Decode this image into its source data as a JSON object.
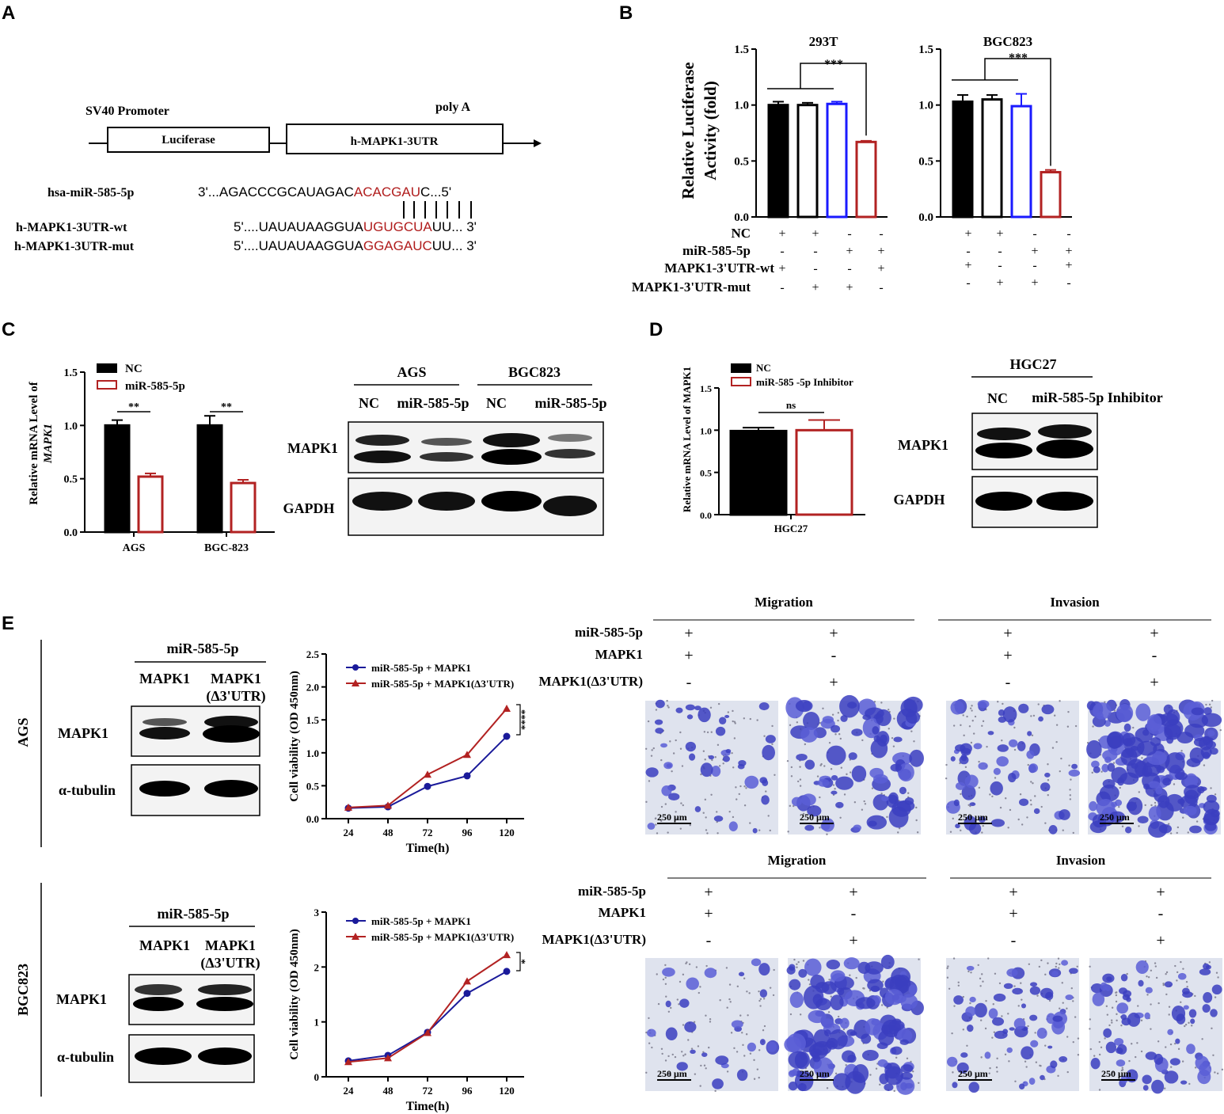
{
  "panels": {
    "A": "A",
    "B": "B",
    "C": "C",
    "D": "D",
    "E": "E"
  },
  "panelA": {
    "promoter": "SV40 Promoter",
    "polya": "poly A",
    "box1": "Luciferase",
    "box2": "h-MAPK1-3UTR",
    "seq1_label": "hsa-miR-585-5p",
    "seq1_a": "3'...AGACCCGCAUAGAC",
    "seq1_b": "ACACGAU",
    "seq1_c": "C...5'",
    "seq2_label": "h-MAPK1-3UTR-wt",
    "seq2_a": "5'....UAUAUAAGGUA",
    "seq2_b": "UGUGCUA",
    "seq2_c": "UU... 3'",
    "seq3_label": "h-MAPK1-3UTR-mut",
    "seq3_a": "5'....UAUAUAAGGUA",
    "seq3_b": "GGAGAUC",
    "seq3_c": "UU... 3'"
  },
  "panelB": {
    "ylabel1": "Relative Luciferase",
    "ylabel2": "Activity (fold)",
    "sig": "***",
    "row_labels": [
      "NC",
      "miR-585-5p",
      "MAPK1-3'UTR-wt",
      "MAPK1-3'UTR-mut"
    ],
    "signs": [
      [
        "+",
        "+",
        "-",
        "-"
      ],
      [
        "-",
        "-",
        "+",
        "+"
      ],
      [
        "+",
        "-",
        "-",
        "+"
      ],
      [
        "-",
        "+",
        "+",
        "-"
      ]
    ]
  },
  "panelC": {
    "ylabel1": "Relative mRNA Level of",
    "ylabel2": "MAPK1",
    "legend": [
      "NC",
      "miR-585-5p"
    ],
    "sig": "**",
    "blot_groups": [
      "AGS",
      "BGC823"
    ],
    "blot_lanes": [
      "NC",
      "miR-585-5p",
      "NC",
      "miR-585-5p"
    ],
    "blot_rows": [
      "MAPK1",
      "GAPDH"
    ]
  },
  "panelD": {
    "ylabel": "Relative mRNA Level of MAPK1",
    "legend": [
      "NC",
      "miR-585 -5p Inhibitor"
    ],
    "sig": "ns",
    "blot_group": "HGC27",
    "blot_lanes": [
      "NC",
      "miR-585-5p Inhibitor"
    ],
    "blot_rows": [
      "MAPK1",
      "GAPDH"
    ]
  },
  "panelE": {
    "rows": [
      "AGS",
      "BGC823"
    ],
    "blot_header": "miR-585-5p",
    "blot_lanes": [
      "MAPK1",
      "MAPK1",
      "(Δ3'UTR)"
    ],
    "blot_rows": [
      "MAPK1",
      "α-tubulin"
    ],
    "curve_ylabel": "Cell viability (OD 450nm)",
    "curve_xlabel": "Time(h)",
    "legend": [
      "miR-585-5p + MAPK1",
      "miR-585-5p + MAPK1(Δ3'UTR)"
    ],
    "sig_top": "****",
    "sig_bottom": "*",
    "assay_titles": [
      "Migration",
      "Invasion"
    ],
    "cond_labels": [
      "miR-585-5p",
      "MAPK1",
      "MAPK1(Δ3'UTR)"
    ],
    "cond_signs": [
      [
        "+",
        "+"
      ],
      [
        "+",
        "-"
      ],
      [
        "-",
        "+"
      ]
    ],
    "scale": "250 μm"
  },
  "chart_data": [
    {
      "type": "bar",
      "title": "293T",
      "ylabel": "Relative Luciferase Activity (fold)",
      "ylim": [
        0,
        1.5
      ],
      "ticks": [
        "0.0",
        "0.5",
        "1.0",
        "1.5"
      ],
      "values": [
        1.0,
        1.0,
        1.01,
        0.67
      ],
      "errors": [
        0.03,
        0.02,
        0.02,
        0.01
      ],
      "colors": [
        "#000000",
        "#000000",
        "#1a1aff",
        "#b22222"
      ],
      "filled": [
        true,
        false,
        false,
        false
      ]
    },
    {
      "type": "bar",
      "title": "BGC823",
      "ylim": [
        0,
        1.5
      ],
      "ticks": [
        "0.0",
        "0.5",
        "1.0",
        "1.5"
      ],
      "values": [
        1.03,
        1.05,
        0.99,
        0.4
      ],
      "errors": [
        0.06,
        0.04,
        0.11,
        0.02
      ],
      "colors": [
        "#000000",
        "#000000",
        "#1a1aff",
        "#b22222"
      ],
      "filled": [
        true,
        false,
        false,
        false
      ]
    },
    {
      "type": "bar",
      "ylabel": "Relative mRNA Level of MAPK1",
      "ylim": [
        0,
        1.5
      ],
      "ticks": [
        "0.0",
        "0.5",
        "1.0",
        "1.5"
      ],
      "categories": [
        "AGS",
        "BGC-823"
      ],
      "series": [
        {
          "name": "NC",
          "values": [
            1.0,
            1.0
          ],
          "errors": [
            0.05,
            0.09
          ]
        },
        {
          "name": "miR-585-5p",
          "values": [
            0.52,
            0.46
          ],
          "errors": [
            0.03,
            0.03
          ]
        }
      ]
    },
    {
      "type": "bar",
      "ylabel": "Relative mRNA Level of MAPK1",
      "ylim": [
        0,
        1.5
      ],
      "ticks": [
        "0.0",
        "0.5",
        "1.0",
        "1.5"
      ],
      "categories": [
        "HGC27"
      ],
      "series": [
        {
          "name": "NC",
          "values": [
            0.99
          ],
          "errors": [
            0.04
          ]
        },
        {
          "name": "miR-585 -5p Inhibitor",
          "values": [
            1.0
          ],
          "errors": [
            0.12
          ]
        }
      ]
    },
    {
      "type": "line",
      "ylabel": "Cell viability (OD 450nm)",
      "xlabel": "Time(h)",
      "ylim": [
        0,
        2.5
      ],
      "x": [
        24,
        48,
        72,
        96,
        120
      ],
      "ticks": [
        "0.0",
        "0.5",
        "1.0",
        "1.5",
        "2.0",
        "2.5"
      ],
      "series": [
        {
          "name": "miR-585-5p + MAPK1",
          "values": [
            0.16,
            0.18,
            0.49,
            0.65,
            1.25
          ],
          "color": "#1a1a9a"
        },
        {
          "name": "miR-585-5p + MAPK1(Δ3'UTR)",
          "values": [
            0.17,
            0.2,
            0.67,
            0.97,
            1.67
          ],
          "color": "#b22222"
        }
      ]
    },
    {
      "type": "line",
      "ylabel": "Cell viability (OD 450nm)",
      "xlabel": "Time(h)",
      "ylim": [
        0,
        3
      ],
      "x": [
        24,
        48,
        72,
        96,
        120
      ],
      "ticks": [
        "0",
        "1",
        "2",
        "3"
      ],
      "series": [
        {
          "name": "miR-585-5p + MAPK1",
          "values": [
            0.29,
            0.39,
            0.81,
            1.52,
            1.92
          ],
          "color": "#1a1a9a"
        },
        {
          "name": "miR-585-5p + MAPK1(Δ3'UTR)",
          "values": [
            0.27,
            0.34,
            0.8,
            1.74,
            2.22
          ],
          "color": "#b22222"
        }
      ]
    }
  ]
}
